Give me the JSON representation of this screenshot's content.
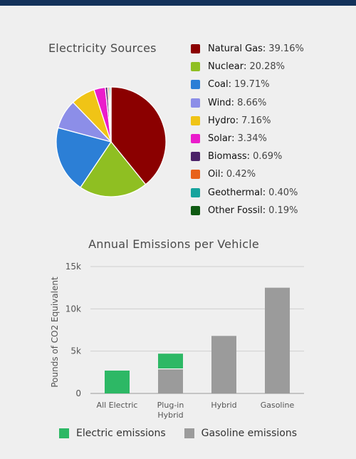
{
  "colors": {
    "electric": "#2db865",
    "gasoline": "#9b9b9b",
    "grid": "#cfcfcf",
    "axis": "#9a9a9a"
  },
  "chart_data": [
    {
      "type": "pie",
      "title": "Electricity Sources",
      "slices": [
        {
          "label": "Natural Gas",
          "display": "39.16%",
          "value": 39.16,
          "color": "#8b0000"
        },
        {
          "label": "Nuclear",
          "display": "20.28%",
          "value": 20.28,
          "color": "#8fbf22"
        },
        {
          "label": "Coal",
          "display": "19.71%",
          "value": 19.71,
          "color": "#2c7fd6"
        },
        {
          "label": "Wind",
          "display": "8.66%",
          "value": 8.66,
          "color": "#8c8ee8"
        },
        {
          "label": "Hydro",
          "display": "7.16%",
          "value": 7.16,
          "color": "#f0c416"
        },
        {
          "label": "Solar",
          "display": "3.34%",
          "value": 3.34,
          "color": "#ea1ccb"
        },
        {
          "label": "Biomass",
          "display": "0.69%",
          "value": 0.69,
          "color": "#4b2268"
        },
        {
          "label": "Oil",
          "display": "0.42%",
          "value": 0.42,
          "color": "#e8621a"
        },
        {
          "label": "Geothermal",
          "display": "0.40%",
          "value": 0.4,
          "color": "#17a39d"
        },
        {
          "label": "Other Fossil",
          "display": "0.19%",
          "value": 0.19,
          "color": "#0f5a12"
        }
      ]
    },
    {
      "type": "bar",
      "stacked": true,
      "title": "Annual Emissions per Vehicle",
      "ylabel": "Pounds of CO2 Equivalent",
      "categories": [
        "All Electric",
        "Plug-in\nHybrid",
        "Hybrid",
        "Gasoline"
      ],
      "ylim": [
        0,
        15000
      ],
      "yticks": [
        {
          "value": 0,
          "label": "0"
        },
        {
          "value": 5000,
          "label": "5k"
        },
        {
          "value": 10000,
          "label": "10k"
        },
        {
          "value": 15000,
          "label": "15k"
        }
      ],
      "grid": true,
      "legend_position": "bottom",
      "series": [
        {
          "name": "Gasoline emissions",
          "color": "#9b9b9b",
          "values": [
            0,
            2900,
            6800,
            12500
          ]
        },
        {
          "name": "Electric emissions",
          "color": "#2db865",
          "values": [
            2700,
            1800,
            0,
            0
          ]
        }
      ],
      "legend": [
        {
          "name": "Electric emissions",
          "color": "#2db865"
        },
        {
          "name": "Gasoline emissions",
          "color": "#9b9b9b"
        }
      ]
    }
  ]
}
